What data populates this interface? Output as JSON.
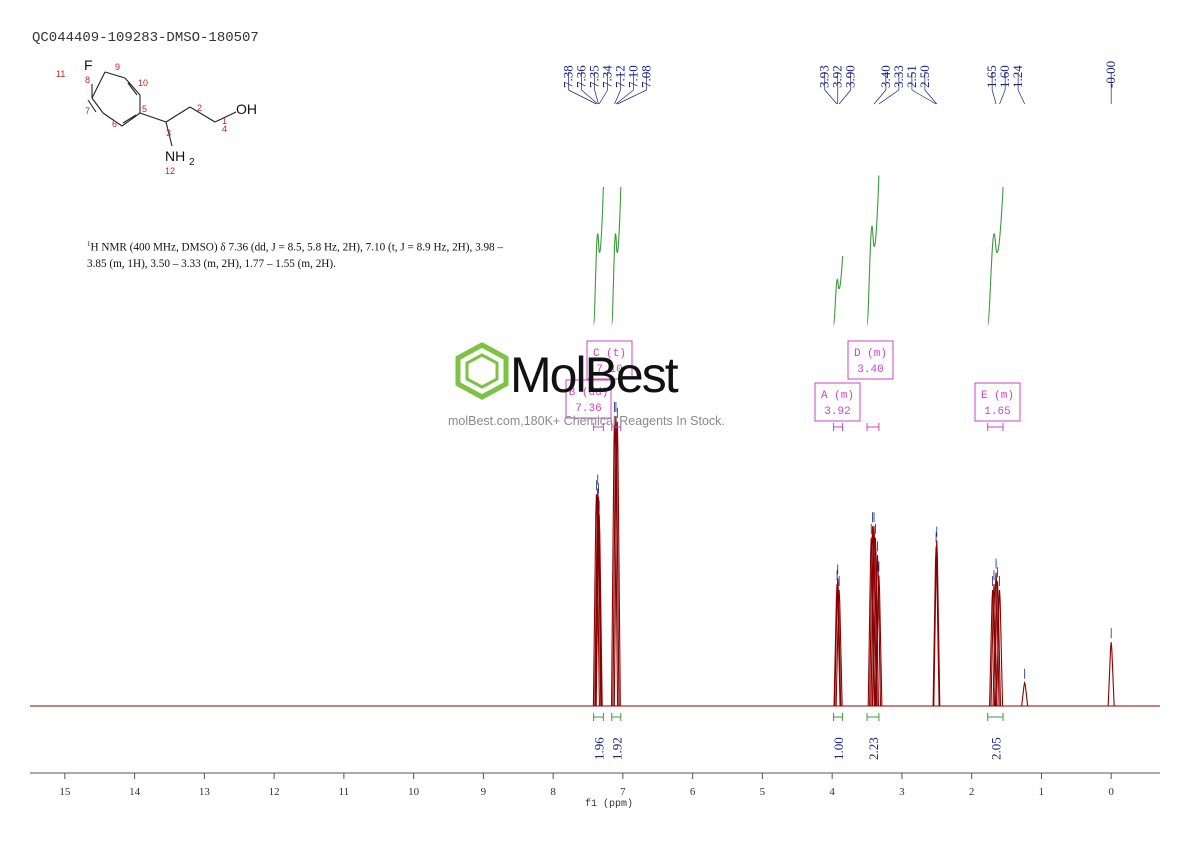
{
  "sample_id": "QC044409-109283-DMSO-180507",
  "nmr_description": {
    "nucleus_sup": "1",
    "text": "H NMR (400 MHz, DMSO) δ 7.36 (dd, J = 8.5, 5.8 Hz, 2H), 7.10 (t, J = 8.9 Hz, 2H), 3.98 – 3.85 (m, 1H), 3.50 – 3.33 (m, 2H), 1.77 – 1.55 (m, 2H)."
  },
  "structure_labels": {
    "atoms": {
      "fluorine": "F",
      "hydroxyl": "OH",
      "amine": "NH",
      "amine_sub": "2"
    },
    "numbers": [
      "1",
      "2",
      "3",
      "4",
      "5",
      "6",
      "7",
      "8",
      "9",
      "10",
      "11",
      "12"
    ]
  },
  "watermark": {
    "brand": "MolBest",
    "tagline": "molBest.com,180K+ Chemical Reagents In Stock.",
    "logo_color": "#7dc242"
  },
  "colors": {
    "spectrum": "#8b0000",
    "peak_labels": "#1a237e",
    "integral_curve": "#3c9a3c",
    "multiplet_box": "#cc44cc",
    "axis": "#555555"
  },
  "chart_data": {
    "type": "line",
    "title": "",
    "xlabel": "f1 (ppm)",
    "ylabel": "",
    "x_reversed": true,
    "xlim": [
      15.5,
      -0.7
    ],
    "x_ticks": [
      15,
      14,
      13,
      12,
      11,
      10,
      9,
      8,
      7,
      6,
      5,
      4,
      3,
      2,
      1,
      0
    ],
    "grid": false,
    "peaks": [
      {
        "ppm": 7.38,
        "height": 0.73
      },
      {
        "ppm": 7.36,
        "height": 0.75
      },
      {
        "ppm": 7.35,
        "height": 0.72
      },
      {
        "ppm": 7.34,
        "height": 0.66
      },
      {
        "ppm": 7.12,
        "height": 1.0
      },
      {
        "ppm": 7.1,
        "height": 1.0
      },
      {
        "ppm": 7.08,
        "height": 0.98
      },
      {
        "ppm": 3.93,
        "height": 0.42
      },
      {
        "ppm": 3.92,
        "height": 0.44
      },
      {
        "ppm": 3.9,
        "height": 0.4
      },
      {
        "ppm": 3.44,
        "height": 0.58
      },
      {
        "ppm": 3.42,
        "height": 0.62
      },
      {
        "ppm": 3.4,
        "height": 0.62
      },
      {
        "ppm": 3.38,
        "height": 0.58
      },
      {
        "ppm": 3.35,
        "height": 0.52
      },
      {
        "ppm": 3.33,
        "height": 0.45
      },
      {
        "ppm": 2.51,
        "height": 0.55
      },
      {
        "ppm": 2.5,
        "height": 0.57
      },
      {
        "ppm": 1.7,
        "height": 0.4
      },
      {
        "ppm": 1.68,
        "height": 0.42
      },
      {
        "ppm": 1.65,
        "height": 0.46
      },
      {
        "ppm": 1.63,
        "height": 0.43
      },
      {
        "ppm": 1.6,
        "height": 0.4
      },
      {
        "ppm": 1.24,
        "height": 0.08
      },
      {
        "ppm": 0.0,
        "height": 0.22
      }
    ],
    "peak_label_groups": [
      {
        "labels": [
          "7.38",
          "7.36",
          "7.35",
          "7.34",
          "7.12",
          "7.10",
          "7.08"
        ],
        "target_ppm": [
          7.38,
          7.36,
          7.35,
          7.34,
          7.12,
          7.1,
          7.08
        ],
        "label_center_ppm": 7.22
      },
      {
        "labels": [
          "3.93",
          "3.92",
          "3.90"
        ],
        "target_ppm": [
          3.93,
          3.92,
          3.9
        ],
        "label_center_ppm": 3.92
      },
      {
        "labels": [
          "3.40",
          "3.33",
          "2.51",
          "2.50"
        ],
        "target_ppm": [
          3.4,
          3.33,
          2.51,
          2.5
        ],
        "label_center_ppm": 2.95
      },
      {
        "labels": [
          "1.65",
          "1.60",
          "1.24"
        ],
        "target_ppm": [
          1.65,
          1.6,
          1.24
        ],
        "label_center_ppm": 1.52
      },
      {
        "labels": [
          "-0.00"
        ],
        "target_ppm": [
          0.0
        ],
        "label_center_ppm": 0.0
      }
    ],
    "integrals": [
      {
        "value": "1.96",
        "from": 7.42,
        "to": 7.28,
        "rise": 0.6
      },
      {
        "value": "1.92",
        "from": 7.16,
        "to": 7.03,
        "rise": 0.6
      },
      {
        "value": "1.00",
        "from": 3.98,
        "to": 3.85,
        "rise": 0.3
      },
      {
        "value": "2.23",
        "from": 3.5,
        "to": 3.33,
        "rise": 0.65
      },
      {
        "value": "2.05",
        "from": 1.77,
        "to": 1.55,
        "rise": 0.6
      }
    ],
    "multiplets": [
      {
        "id": "B",
        "mult": "dd",
        "shift": "7.36",
        "from": 7.42,
        "to": 7.28
      },
      {
        "id": "C",
        "mult": "t",
        "shift": "7.10",
        "from": 7.16,
        "to": 7.03
      },
      {
        "id": "A",
        "mult": "m",
        "shift": "3.92",
        "from": 3.98,
        "to": 3.85
      },
      {
        "id": "D",
        "mult": "m",
        "shift": "3.40",
        "from": 3.5,
        "to": 3.33
      },
      {
        "id": "E",
        "mult": "m",
        "shift": "1.65",
        "from": 1.77,
        "to": 1.55
      }
    ]
  }
}
